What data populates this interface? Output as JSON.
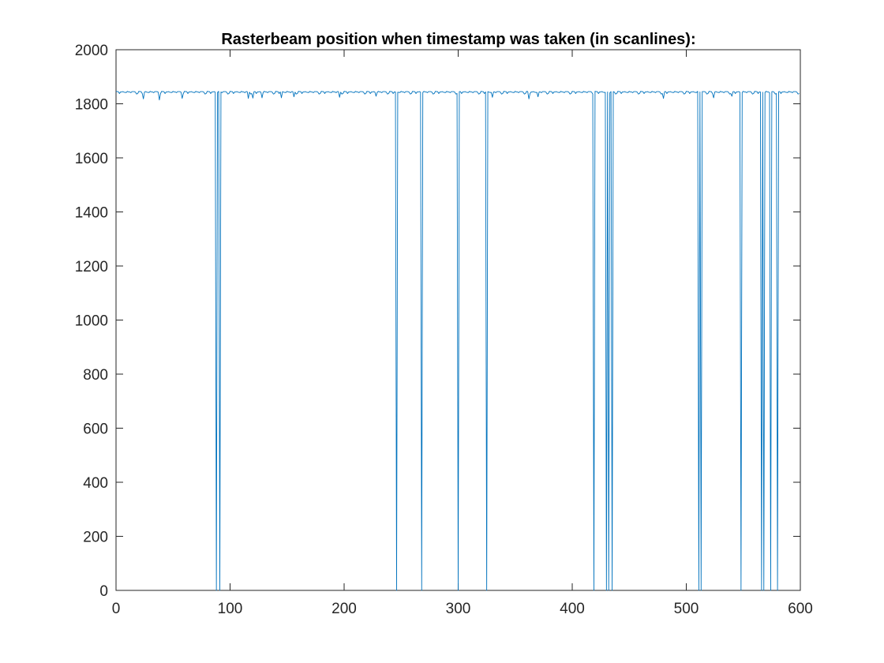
{
  "chart_data": {
    "type": "line",
    "title": "Rasterbeam position when timestamp was taken (in scanlines):",
    "xlabel": "",
    "ylabel": "",
    "xlim": [
      0,
      600
    ],
    "ylim": [
      0,
      2000
    ],
    "xticks": [
      0,
      100,
      200,
      300,
      400,
      500,
      600
    ],
    "yticks": [
      0,
      200,
      400,
      600,
      800,
      1000,
      1200,
      1400,
      1600,
      1800,
      2000
    ],
    "grid": false,
    "legend": "none",
    "box": true,
    "series": [
      {
        "color": "#0072bd",
        "baseline_mean": 1842,
        "baseline_noise": [
          1844,
          1845,
          1843,
          1846,
          1838,
          1845,
          1842,
          1844,
          1845,
          1836,
          1845,
          1844,
          1843,
          1846,
          1841,
          1845,
          1838,
          1845,
          1844,
          1842
        ],
        "shallow_dips": [
          {
            "x": 24,
            "y": 1818
          },
          {
            "x": 38,
            "y": 1814
          },
          {
            "x": 58,
            "y": 1820
          },
          {
            "x": 116,
            "y": 1820
          },
          {
            "x": 120,
            "y": 1821
          },
          {
            "x": 128,
            "y": 1822
          },
          {
            "x": 145,
            "y": 1822
          },
          {
            "x": 156,
            "y": 1826
          },
          {
            "x": 196,
            "y": 1824
          },
          {
            "x": 228,
            "y": 1828
          },
          {
            "x": 300,
            "y": 1826
          },
          {
            "x": 330,
            "y": 1824
          },
          {
            "x": 362,
            "y": 1818
          },
          {
            "x": 370,
            "y": 1826
          },
          {
            "x": 480,
            "y": 1820
          },
          {
            "x": 524,
            "y": 1822
          },
          {
            "x": 540,
            "y": 1828
          }
        ],
        "deep_drops": [
          {
            "x": 88,
            "y": 0
          },
          {
            "x": 91,
            "y": 0
          },
          {
            "x": 246,
            "y": 0
          },
          {
            "x": 268,
            "y": 0
          },
          {
            "x": 300,
            "y": 0
          },
          {
            "x": 325,
            "y": 0
          },
          {
            "x": 419,
            "y": 0
          },
          {
            "x": 430,
            "y": 0
          },
          {
            "x": 432,
            "y": 0
          },
          {
            "x": 435,
            "y": 0
          },
          {
            "x": 511,
            "y": 0
          },
          {
            "x": 513,
            "y": 0
          },
          {
            "x": 548,
            "y": 0
          },
          {
            "x": 566,
            "y": 0
          },
          {
            "x": 568,
            "y": 0
          },
          {
            "x": 574,
            "y": 0
          },
          {
            "x": 580,
            "y": 0
          }
        ],
        "n_points": 600
      }
    ]
  }
}
